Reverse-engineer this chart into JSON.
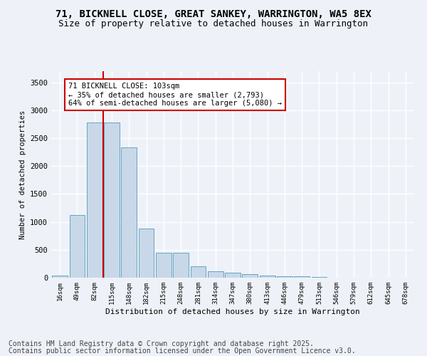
{
  "title_line1": "71, BICKNELL CLOSE, GREAT SANKEY, WARRINGTON, WA5 8EX",
  "title_line2": "Size of property relative to detached houses in Warrington",
  "xlabel": "Distribution of detached houses by size in Warrington",
  "ylabel": "Number of detached properties",
  "bar_color": "#c8d8e8",
  "bar_edge_color": "#5599bb",
  "vline_color": "#cc0000",
  "vline_x": 2.5,
  "annotation_text": "71 BICKNELL CLOSE: 103sqm\n← 35% of detached houses are smaller (2,793)\n64% of semi-detached houses are larger (5,080) →",
  "annotation_box_color": "#ffffff",
  "annotation_box_edge": "#cc0000",
  "categories": [
    "16sqm",
    "49sqm",
    "82sqm",
    "115sqm",
    "148sqm",
    "182sqm",
    "215sqm",
    "248sqm",
    "281sqm",
    "314sqm",
    "347sqm",
    "380sqm",
    "413sqm",
    "446sqm",
    "479sqm",
    "513sqm",
    "546sqm",
    "579sqm",
    "612sqm",
    "645sqm",
    "678sqm"
  ],
  "values": [
    40,
    1120,
    2780,
    2780,
    2340,
    880,
    450,
    450,
    210,
    110,
    90,
    65,
    40,
    30,
    20,
    10,
    5,
    5,
    2,
    2,
    1
  ],
  "ylim": [
    0,
    3700
  ],
  "yticks": [
    0,
    500,
    1000,
    1500,
    2000,
    2500,
    3000,
    3500
  ],
  "background_color": "#eef2f8",
  "plot_bg_color": "#eef2f8",
  "grid_color": "#ffffff",
  "footer_line1": "Contains HM Land Registry data © Crown copyright and database right 2025.",
  "footer_line2": "Contains public sector information licensed under the Open Government Licence v3.0.",
  "title_fontsize": 10,
  "subtitle_fontsize": 9,
  "footer_fontsize": 7
}
